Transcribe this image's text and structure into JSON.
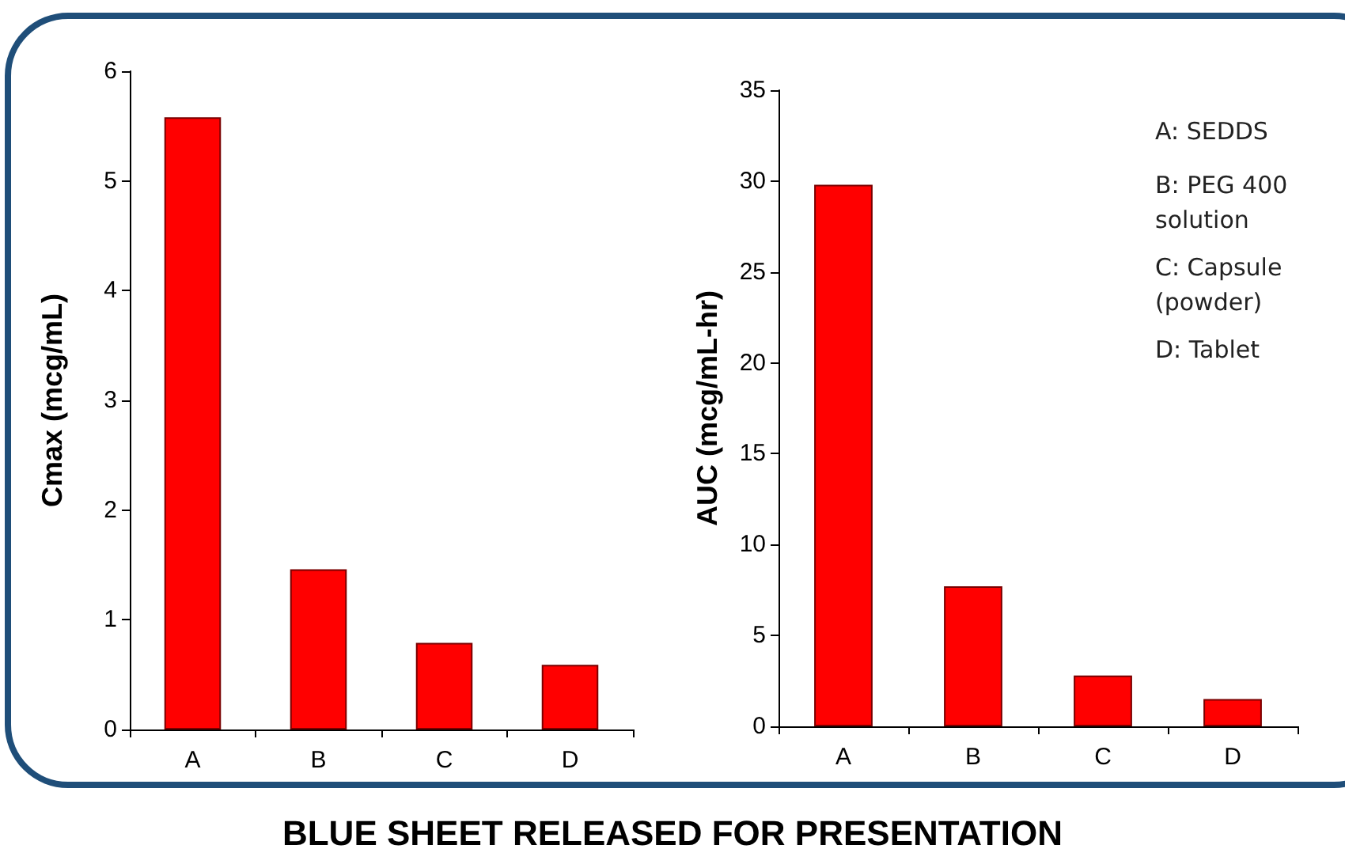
{
  "chart_data": [
    {
      "type": "bar",
      "categories": [
        "A",
        "B",
        "C",
        "D"
      ],
      "values": [
        5.58,
        1.46,
        0.79,
        0.59
      ],
      "color": "#ff0000",
      "ylabel": "Cmax (mcg/mL)",
      "ylim": [
        0,
        6
      ],
      "yticks": [
        0,
        1,
        2,
        3,
        4,
        5,
        6
      ],
      "annotations": [
        "BLUE SHEET RELEASED FOR PRESENTATION"
      ]
    },
    {
      "type": "bar",
      "categories": [
        "A",
        "B",
        "C",
        "D"
      ],
      "values": [
        29.8,
        7.7,
        2.8,
        1.5
      ],
      "color": "#ff0000",
      "ylabel": "AUC (mcg/mL-hr)",
      "ylim": [
        0,
        35
      ],
      "yticks": [
        0,
        5,
        10,
        15,
        20,
        25,
        30,
        35
      ],
      "annotations": [
        "A: SEDDS",
        "B: PEG 400 solution",
        "C: Capsule (powder)",
        "D: Tablet"
      ]
    }
  ]
}
